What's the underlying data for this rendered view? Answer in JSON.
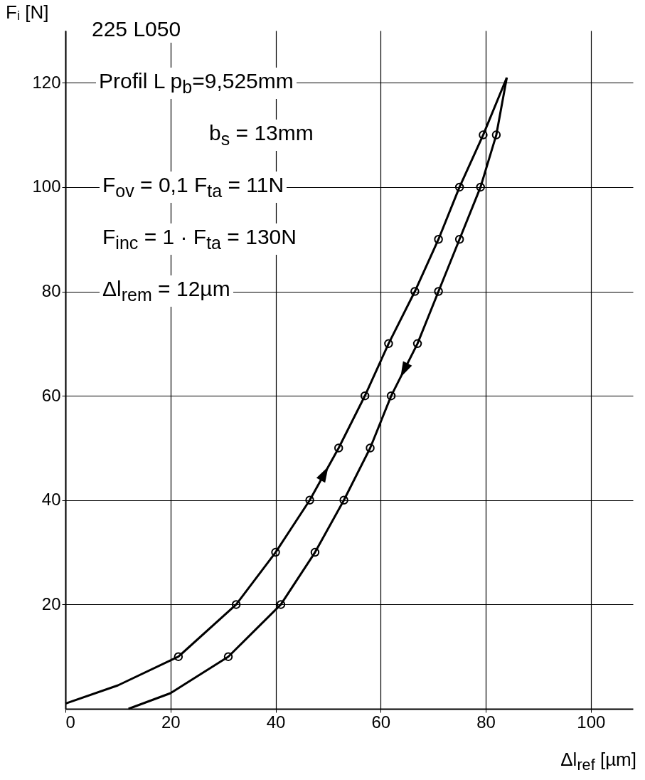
{
  "chart_data": {
    "type": "line",
    "title": "225 L050",
    "xlabel": "Δl$_{ref}$ [µm]",
    "ylabel": "Fᵢ [N]",
    "annotations": [
      "Profil L p$_{b}$=9,525mm",
      "b$_{s}$ = 13mm",
      "F$_{ov}$ = 0,1 F$_{ta}$ = 11N",
      "F$_{inc}$ = 1 · F$_{ta}$ = 130N",
      "Δl$_{rem}$ = 12µm"
    ],
    "series": [
      {
        "type": "line",
        "color": "#000000",
        "marker": "none",
        "x": [
          0,
          10,
          21.5,
          32.5,
          40,
          46.5,
          52,
          57,
          61.5,
          66.5,
          71,
          75,
          79.5,
          84
        ],
        "values": [
          1,
          4.5,
          10,
          20,
          30,
          40,
          50,
          60,
          70,
          80,
          90,
          100,
          110,
          121
        ]
      },
      {
        "type": "line",
        "color": "#000000",
        "marker": "none",
        "x": [
          12,
          20,
          31,
          41,
          47.5,
          53,
          58,
          62,
          67,
          71,
          75,
          79,
          82,
          84
        ],
        "values": [
          0,
          3,
          10,
          20,
          30,
          40,
          50,
          60,
          70,
          80,
          90,
          100,
          110,
          121
        ]
      },
      {
        "type": "scatter",
        "color": "#000000",
        "marker": "circle",
        "x": [
          21.5,
          32.5,
          40,
          46.5,
          52,
          57,
          61.5,
          66.5,
          71,
          75,
          79.5
        ],
        "values": [
          10,
          20,
          30,
          40,
          50,
          60,
          70,
          80,
          90,
          100,
          110
        ]
      },
      {
        "type": "scatter",
        "color": "#000000",
        "marker": "circle",
        "x": [
          31,
          41,
          47.5,
          53,
          58,
          62,
          67,
          71,
          75,
          79,
          82
        ],
        "values": [
          10,
          20,
          30,
          40,
          50,
          60,
          70,
          80,
          90,
          100,
          110
        ]
      }
    ],
    "xlim": [
      0,
      108
    ],
    "ylim": [
      0,
      130
    ],
    "xticks": [
      0,
      20,
      40,
      60,
      80,
      100
    ],
    "yticks": [
      20,
      40,
      60,
      80,
      100,
      120
    ],
    "grid": true
  }
}
